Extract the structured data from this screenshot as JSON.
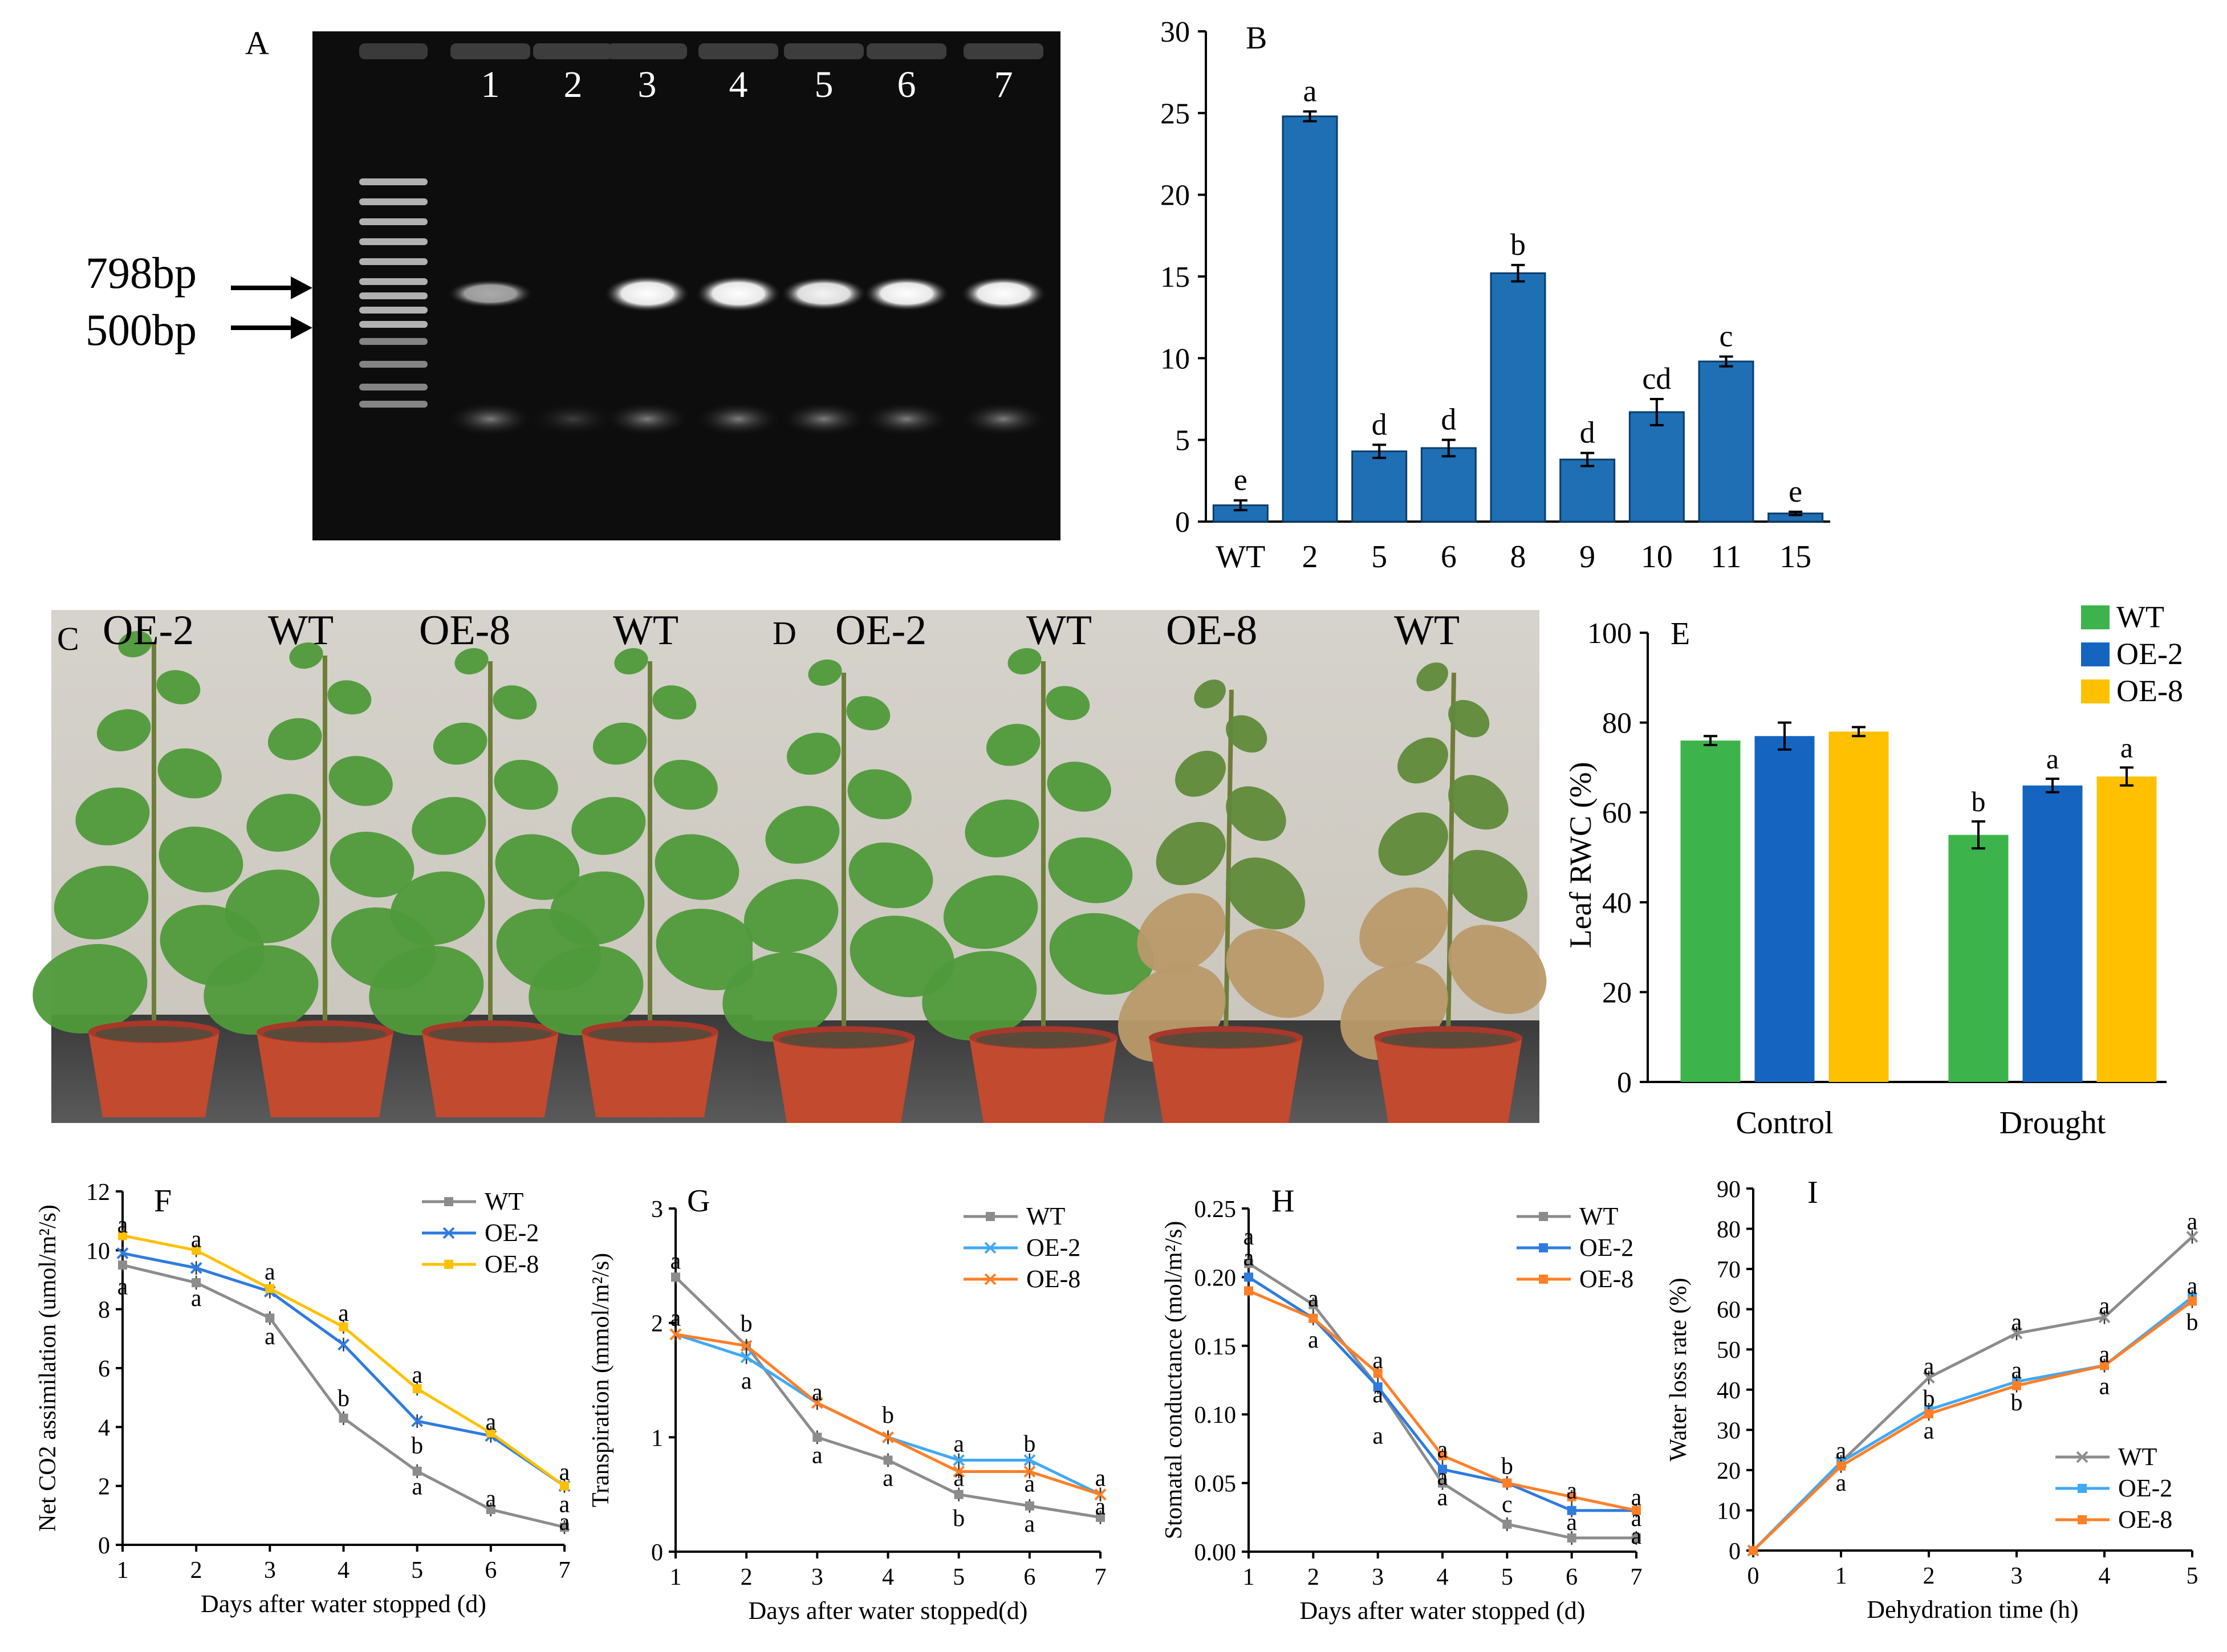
{
  "panel_letters": {
    "A": "A",
    "B": "B",
    "C": "C",
    "D": "D",
    "E": "E",
    "F": "F",
    "G": "G",
    "H": "H",
    "I": "I"
  },
  "gel": {
    "lanes": [
      "1",
      "2",
      "3",
      "4",
      "5",
      "6",
      "7"
    ],
    "markers": [
      "798bp",
      "500bp"
    ],
    "band_intensity": [
      0.55,
      0.0,
      1.0,
      1.0,
      0.85,
      0.9,
      0.9
    ]
  },
  "photo_C": {
    "labels": [
      "OE-2",
      "WT",
      "OE-8",
      "WT"
    ]
  },
  "photo_D": {
    "labels": [
      "OE-2",
      "WT",
      "OE-8",
      "WT"
    ]
  },
  "colors": {
    "bar_blue": "#1f6fb4",
    "green": "#3cb44b",
    "blue": "#1565c0",
    "yellow": "#ffc000",
    "gray": "#8c8c8c",
    "light_blue": "#3fa9f5",
    "orange": "#ff7f27",
    "line_blue": "#2e7be0",
    "line_yellow": "#ffc000"
  },
  "chart_data": [
    {
      "id": "B",
      "type": "bar",
      "categories": [
        "WT",
        "2",
        "5",
        "6",
        "8",
        "9",
        "10",
        "11",
        "15"
      ],
      "values": [
        1.0,
        24.8,
        4.3,
        4.5,
        15.2,
        3.8,
        6.7,
        9.8,
        0.5
      ],
      "errors": [
        0.3,
        0.3,
        0.4,
        0.5,
        0.5,
        0.4,
        0.8,
        0.3,
        0.1
      ],
      "letters": [
        "e",
        "a",
        "d",
        "d",
        "b",
        "d",
        "cd",
        "c",
        "e"
      ],
      "ylim": [
        0,
        30
      ],
      "yticks": [
        "0",
        "5",
        "10",
        "15",
        "20",
        "25",
        "30"
      ],
      "xlabel": "",
      "ylabel": ""
    },
    {
      "id": "E",
      "type": "bar",
      "categories": [
        "Control",
        "Drought"
      ],
      "series": [
        {
          "name": "WT",
          "values": [
            76,
            55
          ],
          "errors": [
            1,
            3
          ],
          "letters": [
            "",
            "b"
          ]
        },
        {
          "name": "OE-2",
          "values": [
            77,
            66
          ],
          "errors": [
            3,
            1.5
          ],
          "letters": [
            "",
            "a"
          ]
        },
        {
          "name": "OE-8",
          "values": [
            78,
            68
          ],
          "errors": [
            1,
            2
          ],
          "letters": [
            "",
            "a"
          ]
        }
      ],
      "ylim": [
        0,
        100
      ],
      "yticks": [
        "0",
        "20",
        "40",
        "60",
        "80",
        "100"
      ],
      "ylabel": "Leaf RWC (%)",
      "legend": "top-right"
    },
    {
      "id": "F",
      "type": "line",
      "x": [
        1,
        2,
        3,
        4,
        5,
        6,
        7
      ],
      "series": [
        {
          "name": "WT",
          "values": [
            9.5,
            8.9,
            7.7,
            4.3,
            2.5,
            1.2,
            0.6
          ]
        },
        {
          "name": "OE-2",
          "values": [
            9.9,
            9.4,
            8.6,
            6.8,
            4.2,
            3.7,
            2.0
          ]
        },
        {
          "name": "OE-8",
          "values": [
            10.5,
            10.0,
            8.7,
            7.4,
            5.3,
            3.8,
            2.0
          ]
        }
      ],
      "ylim": [
        0,
        12
      ],
      "yticks": [
        "0",
        "2",
        "4",
        "6",
        "8",
        "10",
        "12"
      ],
      "xticks": [
        "1",
        "2",
        "3",
        "4",
        "5",
        "6",
        "7"
      ],
      "xlabel": "Days after water stopped (d)",
      "ylabel": "Net CO2 assimilation (umol/m²/s)",
      "annotations": [
        {
          "x": 1,
          "y": 10.9,
          "t": "a"
        },
        {
          "x": 1,
          "y": 8.8,
          "t": "a"
        },
        {
          "x": 2,
          "y": 10.4,
          "t": "a"
        },
        {
          "x": 2,
          "y": 8.4,
          "t": "a"
        },
        {
          "x": 3,
          "y": 9.3,
          "t": "a"
        },
        {
          "x": 3,
          "y": 7.1,
          "t": "a"
        },
        {
          "x": 4,
          "y": 7.9,
          "t": "a"
        },
        {
          "x": 4,
          "y": 5.0,
          "t": "b"
        },
        {
          "x": 5,
          "y": 5.8,
          "t": "a"
        },
        {
          "x": 5,
          "y": 3.4,
          "t": "b"
        },
        {
          "x": 5,
          "y": 2.0,
          "t": "a"
        },
        {
          "x": 6,
          "y": 4.2,
          "t": "a"
        },
        {
          "x": 6,
          "y": 1.6,
          "t": "a"
        },
        {
          "x": 7,
          "y": 2.5,
          "t": "a"
        },
        {
          "x": 7,
          "y": 1.4,
          "t": "a"
        },
        {
          "x": 7,
          "y": 0.8,
          "t": "a"
        }
      ]
    },
    {
      "id": "G",
      "type": "line",
      "x": [
        1,
        2,
        3,
        4,
        5,
        6,
        7
      ],
      "series": [
        {
          "name": "WT",
          "values": [
            2.4,
            1.8,
            1.0,
            0.8,
            0.5,
            0.4,
            0.3
          ]
        },
        {
          "name": "OE-2",
          "values": [
            1.9,
            1.7,
            1.3,
            1.0,
            0.8,
            0.8,
            0.5
          ]
        },
        {
          "name": "OE-8",
          "values": [
            1.9,
            1.8,
            1.3,
            1.0,
            0.7,
            0.7,
            0.5
          ]
        }
      ],
      "ylim": [
        0,
        3
      ],
      "yticks": [
        "0",
        "1",
        "2",
        "3"
      ],
      "xticks": [
        "1",
        "2",
        "3",
        "4",
        "5",
        "6",
        "7"
      ],
      "xlabel": "Days after water stopped(d)",
      "ylabel": "Transpiration (mmol/m²/s)",
      "annotations": [
        {
          "x": 1,
          "y": 2.55,
          "t": "a"
        },
        {
          "x": 1,
          "y": 2.05,
          "t": "a"
        },
        {
          "x": 2,
          "y": 2.0,
          "t": "b"
        },
        {
          "x": 2,
          "y": 1.5,
          "t": "a"
        },
        {
          "x": 3,
          "y": 1.4,
          "t": "a"
        },
        {
          "x": 3,
          "y": 0.85,
          "t": "a"
        },
        {
          "x": 4,
          "y": 1.2,
          "t": "b"
        },
        {
          "x": 4,
          "y": 0.65,
          "t": "a"
        },
        {
          "x": 5,
          "y": 0.95,
          "t": "a"
        },
        {
          "x": 5,
          "y": 0.65,
          "t": "a"
        },
        {
          "x": 5,
          "y": 0.3,
          "t": "b"
        },
        {
          "x": 6,
          "y": 0.95,
          "t": "b"
        },
        {
          "x": 6,
          "y": 0.6,
          "t": "a"
        },
        {
          "x": 6,
          "y": 0.25,
          "t": "a"
        },
        {
          "x": 7,
          "y": 0.65,
          "t": "a"
        },
        {
          "x": 7,
          "y": 0.4,
          "t": "a"
        }
      ]
    },
    {
      "id": "H",
      "type": "line",
      "x": [
        1,
        2,
        3,
        4,
        5,
        6,
        7
      ],
      "series": [
        {
          "name": "WT",
          "values": [
            0.21,
            0.18,
            0.12,
            0.05,
            0.02,
            0.01,
            0.01
          ]
        },
        {
          "name": "OE-2",
          "values": [
            0.2,
            0.17,
            0.12,
            0.06,
            0.05,
            0.03,
            0.03
          ]
        },
        {
          "name": "OE-8",
          "values": [
            0.19,
            0.17,
            0.13,
            0.07,
            0.05,
            0.04,
            0.03
          ]
        }
      ],
      "ylim": [
        0,
        0.25
      ],
      "yticks": [
        "0.00",
        "0.05",
        "0.10",
        "0.15",
        "0.20",
        "0.25"
      ],
      "xticks": [
        "1",
        "2",
        "3",
        "4",
        "5",
        "6",
        "7"
      ],
      "xlabel": "Days after water stopped (d)",
      "ylabel": "Stomatal conductance (mol/m²/s)",
      "annotations": [
        {
          "x": 1,
          "y": 0.23,
          "t": "a"
        },
        {
          "x": 1,
          "y": 0.215,
          "t": "a"
        },
        {
          "x": 2,
          "y": 0.185,
          "t": "a"
        },
        {
          "x": 2,
          "y": 0.155,
          "t": "a"
        },
        {
          "x": 3,
          "y": 0.14,
          "t": "a"
        },
        {
          "x": 3,
          "y": 0.115,
          "t": "a"
        },
        {
          "x": 3,
          "y": 0.085,
          "t": "a"
        },
        {
          "x": 4,
          "y": 0.075,
          "t": "a"
        },
        {
          "x": 4,
          "y": 0.055,
          "t": "a"
        },
        {
          "x": 4,
          "y": 0.04,
          "t": "a"
        },
        {
          "x": 5,
          "y": 0.063,
          "t": "b"
        },
        {
          "x": 5,
          "y": 0.035,
          "t": "c"
        },
        {
          "x": 6,
          "y": 0.045,
          "t": "a"
        },
        {
          "x": 6,
          "y": 0.022,
          "t": "a"
        },
        {
          "x": 7,
          "y": 0.04,
          "t": "a"
        },
        {
          "x": 7,
          "y": 0.025,
          "t": "a"
        },
        {
          "x": 7,
          "y": 0.012,
          "t": "a"
        }
      ]
    },
    {
      "id": "I",
      "type": "line",
      "x": [
        0,
        1,
        2,
        3,
        4,
        5
      ],
      "series": [
        {
          "name": "WT",
          "values": [
            0,
            22,
            43,
            54,
            58,
            78
          ]
        },
        {
          "name": "OE-2",
          "values": [
            0,
            22,
            35,
            42,
            46,
            63
          ]
        },
        {
          "name": "OE-8",
          "values": [
            0,
            21,
            34,
            41,
            46,
            62
          ]
        }
      ],
      "ylim": [
        0,
        90
      ],
      "yticks": [
        "0",
        "10",
        "20",
        "30",
        "40",
        "50",
        "60",
        "70",
        "80",
        "90"
      ],
      "xticks": [
        "0",
        "1",
        "2",
        "3",
        "4",
        "5"
      ],
      "xlabel": "Dehydration time (h)",
      "ylabel": "Water loss rate (%)",
      "annotations": [
        {
          "x": 1,
          "y": 25,
          "t": "a"
        },
        {
          "x": 1,
          "y": 17,
          "t": "a"
        },
        {
          "x": 2,
          "y": 46,
          "t": "a"
        },
        {
          "x": 2,
          "y": 38,
          "t": "b"
        },
        {
          "x": 2,
          "y": 30,
          "t": "a"
        },
        {
          "x": 3,
          "y": 57,
          "t": "a"
        },
        {
          "x": 3,
          "y": 45,
          "t": "a"
        },
        {
          "x": 3,
          "y": 37,
          "t": "b"
        },
        {
          "x": 4,
          "y": 61,
          "t": "a"
        },
        {
          "x": 4,
          "y": 49,
          "t": "a"
        },
        {
          "x": 4,
          "y": 41,
          "t": "a"
        },
        {
          "x": 5,
          "y": 82,
          "t": "a"
        },
        {
          "x": 5,
          "y": 66,
          "t": "a"
        },
        {
          "x": 5,
          "y": 57,
          "t": "b"
        }
      ]
    }
  ]
}
